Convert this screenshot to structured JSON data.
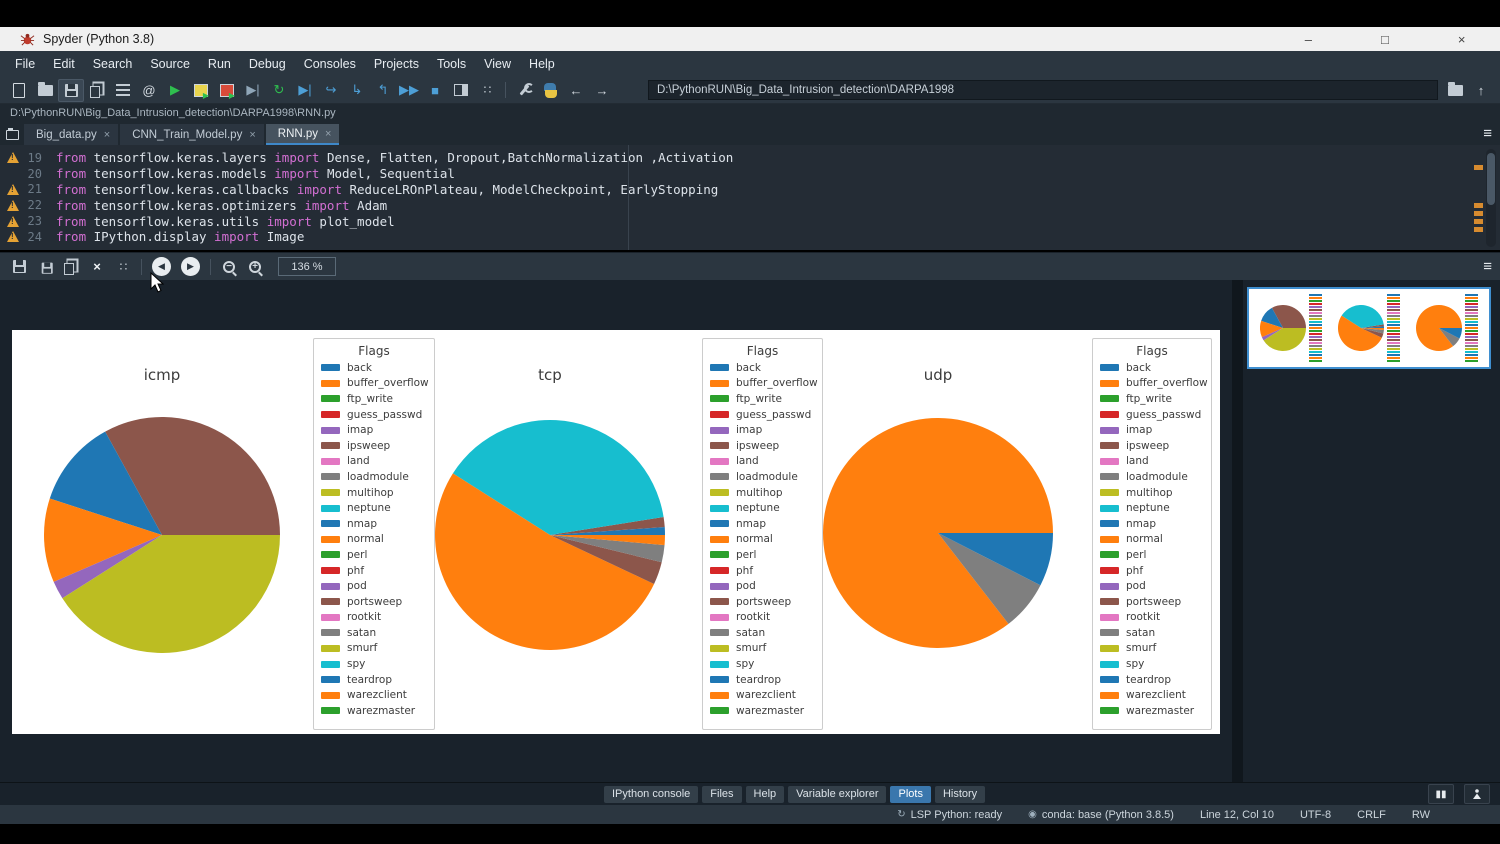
{
  "window": {
    "title": "Spyder (Python 3.8)"
  },
  "icons": {
    "close": "×",
    "menu": "≡",
    "at": "@",
    "run": "▶",
    "run2": "▶▶",
    "stop": "■",
    "back": "←",
    "forward": "→",
    "up": "↑",
    "rerun": "↻",
    "debug": "▶|",
    "step_over": "↪",
    "step_into": "↳",
    "step_return": "↰",
    "prev": "◀",
    "next": "▶",
    "zoom_out": "−",
    "zoom_in": "+",
    "pause": "▮▮",
    "minimize": "–",
    "maximize": "□",
    "win_close": "×",
    "fit": "∷",
    "status_lsp": "↻",
    "status_conda": "◉"
  },
  "menu": {
    "items": [
      "File",
      "Edit",
      "Search",
      "Source",
      "Run",
      "Debug",
      "Consoles",
      "Projects",
      "Tools",
      "View",
      "Help"
    ]
  },
  "toolbar": {
    "working_dir": "D:\\PythonRUN\\Big_Data_Intrusion_detection\\DARPA1998"
  },
  "breadcrumb": "D:\\PythonRUN\\Big_Data_Intrusion_detection\\DARPA1998\\RNN.py",
  "editor_tabs": [
    {
      "label": "Big_data.py",
      "active": false
    },
    {
      "label": "CNN_Train_Model.py",
      "active": false
    },
    {
      "label": "RNN.py",
      "active": true
    }
  ],
  "editor": {
    "lines": [
      {
        "num": "19",
        "warning": true,
        "segments": [
          [
            "kw",
            "from"
          ],
          [
            "tx",
            " tensorflow.keras.layers "
          ],
          [
            "kw",
            "import"
          ],
          [
            "tx",
            " Dense, Flatten, Dropout,BatchNormalization ,Activation"
          ]
        ]
      },
      {
        "num": "20",
        "warning": false,
        "segments": [
          [
            "kw",
            "from"
          ],
          [
            "tx",
            " tensorflow.keras.models "
          ],
          [
            "kw",
            "import"
          ],
          [
            "tx",
            " Model, Sequential"
          ]
        ]
      },
      {
        "num": "21",
        "warning": true,
        "segments": [
          [
            "kw",
            "from"
          ],
          [
            "tx",
            " tensorflow.keras.callbacks "
          ],
          [
            "kw",
            "import"
          ],
          [
            "tx",
            " ReduceLROnPlateau, ModelCheckpoint, EarlyStopping"
          ]
        ]
      },
      {
        "num": "22",
        "warning": true,
        "segments": [
          [
            "kw",
            "from"
          ],
          [
            "tx",
            " tensorflow.keras.optimizers "
          ],
          [
            "kw",
            "import"
          ],
          [
            "tx",
            " Adam"
          ]
        ]
      },
      {
        "num": "23",
        "warning": true,
        "segments": [
          [
            "kw",
            "from"
          ],
          [
            "tx",
            " tensorflow.keras.utils "
          ],
          [
            "kw",
            "import"
          ],
          [
            "tx",
            " plot_model"
          ]
        ]
      },
      {
        "num": "24",
        "warning": true,
        "segments": [
          [
            "kw",
            "from"
          ],
          [
            "tx",
            " IPython.display "
          ],
          [
            "kw",
            "import"
          ],
          [
            "tx",
            " Image"
          ]
        ]
      }
    ]
  },
  "plots_toolbar": {
    "zoom_level": "136 %"
  },
  "flags_legend": {
    "title": "Flags",
    "entries": [
      {
        "label": "back",
        "color": "#1f77b4"
      },
      {
        "label": "buffer_overflow",
        "color": "#ff7f0e"
      },
      {
        "label": "ftp_write",
        "color": "#2ca02c"
      },
      {
        "label": "guess_passwd",
        "color": "#d62728"
      },
      {
        "label": "imap",
        "color": "#9467bd"
      },
      {
        "label": "ipsweep",
        "color": "#8c564b"
      },
      {
        "label": "land",
        "color": "#e377c2"
      },
      {
        "label": "loadmodule",
        "color": "#7f7f7f"
      },
      {
        "label": "multihop",
        "color": "#bcbd22"
      },
      {
        "label": "neptune",
        "color": "#17becf"
      },
      {
        "label": "nmap",
        "color": "#1f77b4"
      },
      {
        "label": "normal",
        "color": "#ff7f0e"
      },
      {
        "label": "perl",
        "color": "#2ca02c"
      },
      {
        "label": "phf",
        "color": "#d62728"
      },
      {
        "label": "pod",
        "color": "#9467bd"
      },
      {
        "label": "portsweep",
        "color": "#8c564b"
      },
      {
        "label": "rootkit",
        "color": "#e377c2"
      },
      {
        "label": "satan",
        "color": "#7f7f7f"
      },
      {
        "label": "smurf",
        "color": "#bcbd22"
      },
      {
        "label": "spy",
        "color": "#17becf"
      },
      {
        "label": "teardrop",
        "color": "#1f77b4"
      },
      {
        "label": "warezclient",
        "color": "#ff7f0e"
      },
      {
        "label": "warezmaster",
        "color": "#2ca02c"
      }
    ]
  },
  "chart_data": [
    {
      "type": "pie",
      "title": "icmp",
      "legend_title": "Flags",
      "legend_position": "right",
      "start_angle": 0,
      "direction": "counterclockwise",
      "units": "percent",
      "slices": [
        {
          "label": "ipsweep",
          "value": 33.0,
          "color": "#8c564b"
        },
        {
          "label": "nmap",
          "value": 12.0,
          "color": "#1f77b4"
        },
        {
          "label": "normal",
          "value": 11.5,
          "color": "#ff7f0e"
        },
        {
          "label": "pod",
          "value": 2.5,
          "color": "#9467bd"
        },
        {
          "label": "smurf",
          "value": 41.0,
          "color": "#bcbd22"
        }
      ]
    },
    {
      "type": "pie",
      "title": "tcp",
      "legend_title": "Flags",
      "legend_position": "right",
      "start_angle": 0,
      "direction": "counterclockwise",
      "units": "percent",
      "slices": [
        {
          "label": "back",
          "value": 1.1,
          "color": "#1f77b4"
        },
        {
          "label": "ipsweep",
          "value": 1.4,
          "color": "#8c564b"
        },
        {
          "label": "neptune",
          "value": 38.5,
          "color": "#17becf"
        },
        {
          "label": "normal",
          "value": 52.0,
          "color": "#ff7f0e"
        },
        {
          "label": "portsweep",
          "value": 3.2,
          "color": "#8c564b"
        },
        {
          "label": "satan",
          "value": 2.4,
          "color": "#7f7f7f"
        },
        {
          "label": "warezclient",
          "value": 1.4,
          "color": "#ff7f0e"
        }
      ]
    },
    {
      "type": "pie",
      "title": "udp",
      "legend_title": "Flags",
      "legend_position": "right",
      "start_angle": 0,
      "direction": "counterclockwise",
      "units": "percent",
      "slices": [
        {
          "label": "normal",
          "value": 85.5,
          "color": "#ff7f0e"
        },
        {
          "label": "satan",
          "value": 7.0,
          "color": "#7f7f7f"
        },
        {
          "label": "teardrop",
          "value": 7.5,
          "color": "#1f77b4"
        }
      ]
    }
  ],
  "bottom_tabs": [
    {
      "label": "IPython console",
      "active": false
    },
    {
      "label": "Files",
      "active": false
    },
    {
      "label": "Help",
      "active": false
    },
    {
      "label": "Variable explorer",
      "active": false
    },
    {
      "label": "Plots",
      "active": true
    },
    {
      "label": "History",
      "active": false
    }
  ],
  "statusbar": {
    "lsp": "LSP Python: ready",
    "conda": "conda: base (Python 3.8.5)",
    "cursor_pos": "Line 12, Col 10",
    "encoding": "UTF-8",
    "eol": "CRLF",
    "permissions": "RW"
  }
}
